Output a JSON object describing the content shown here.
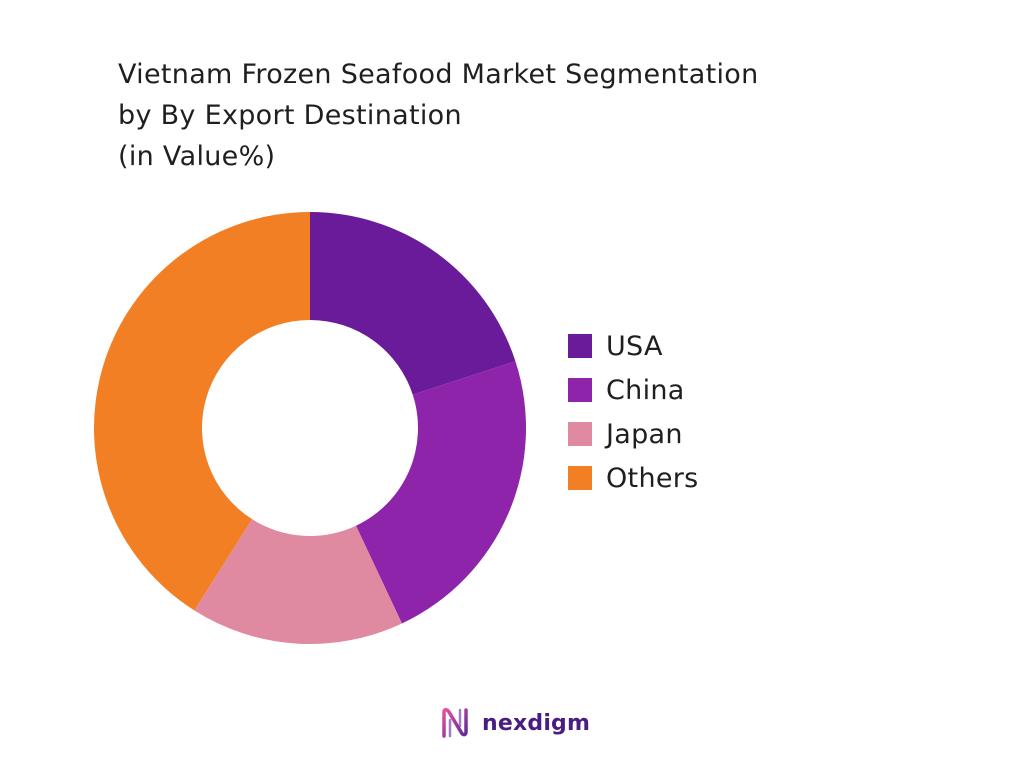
{
  "title_lines": [
    "Vietnam Frozen Seafood Market Segmentation",
    "by By Export Destination",
    "(in Value%)"
  ],
  "chart_data": {
    "type": "pie",
    "donut": true,
    "title": "Vietnam Frozen Seafood Market Segmentation by By Export Destination (in Value%)",
    "legend_position": "right",
    "slices": [
      {
        "label": "USA",
        "value": 20,
        "color": "#6a1b9a"
      },
      {
        "label": "China",
        "value": 23,
        "color": "#8e24aa"
      },
      {
        "label": "Japan",
        "value": 16,
        "color": "#df8aa0"
      },
      {
        "label": "Others",
        "value": 41,
        "color": "#f37f25"
      }
    ]
  },
  "brand": {
    "name": "nexdigm",
    "logo_icon": "nexdigm-logo-icon",
    "color": "#4a1d83"
  }
}
